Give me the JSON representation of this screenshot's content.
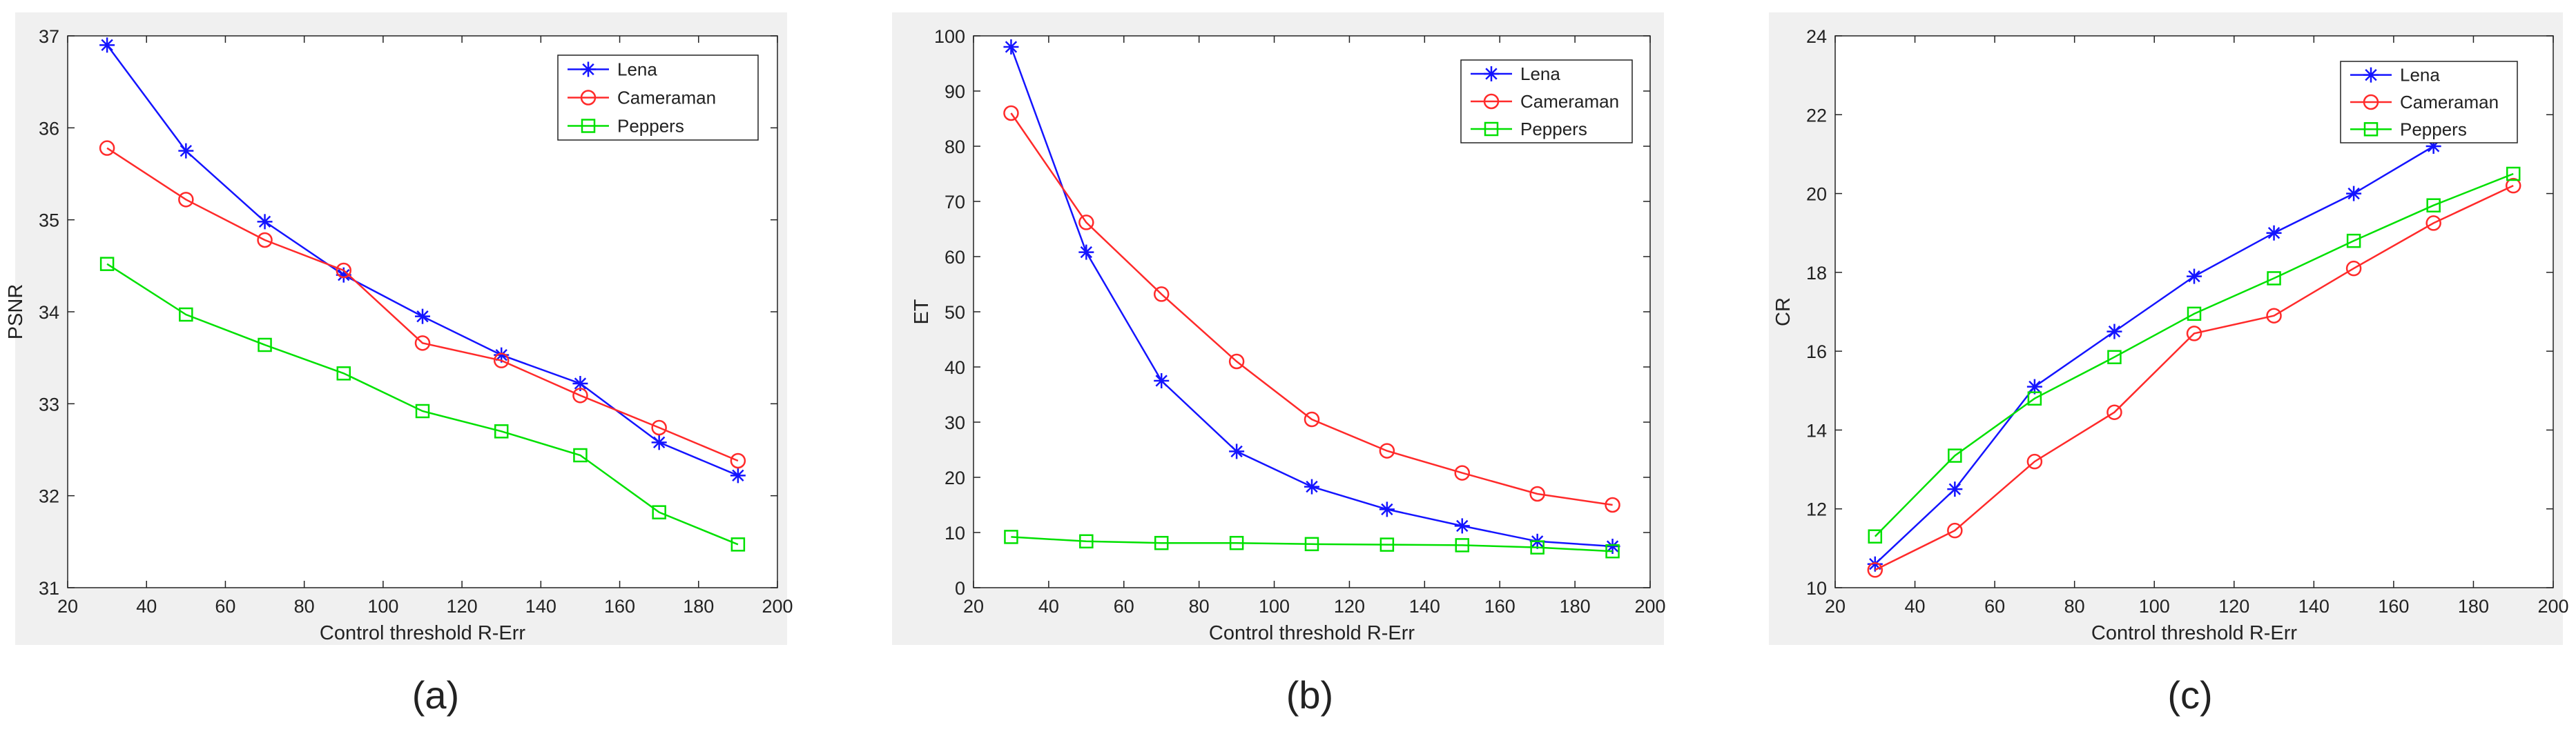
{
  "colors": {
    "lena": "#1414ff",
    "cameraman": "#ff2a2a",
    "peppers": "#00e000",
    "panel_bg": "#f0f0f0",
    "axes_bg": "#ffffff",
    "axis": "#222222"
  },
  "chart_data": [
    {
      "type": "line",
      "caption": "(a)",
      "xlabel": "Control threshold R-Err",
      "ylabel": "PSNR",
      "xlim": [
        20,
        200
      ],
      "ylim": [
        31,
        37
      ],
      "xticks": [
        20,
        40,
        60,
        80,
        100,
        120,
        140,
        160,
        180,
        200
      ],
      "yticks": [
        31,
        32,
        33,
        34,
        35,
        36,
        37
      ],
      "grid": false,
      "legend": "top-right",
      "x": [
        30,
        50,
        70,
        90,
        110,
        130,
        150,
        170,
        190
      ],
      "series": [
        {
          "name": "Lena",
          "marker": "star",
          "values": [
            36.9,
            35.75,
            34.98,
            34.4,
            33.95,
            33.53,
            33.22,
            32.58,
            32.22
          ]
        },
        {
          "name": "Cameraman",
          "marker": "circle",
          "values": [
            35.78,
            35.22,
            34.78,
            34.45,
            33.66,
            33.47,
            33.09,
            32.74,
            32.38
          ]
        },
        {
          "name": "Peppers",
          "marker": "square",
          "values": [
            34.52,
            33.97,
            33.64,
            33.33,
            32.92,
            32.7,
            32.44,
            31.82,
            31.47
          ]
        }
      ]
    },
    {
      "type": "line",
      "caption": "(b)",
      "xlabel": "Control threshold R-Err",
      "ylabel": "ET",
      "xlim": [
        20,
        200
      ],
      "ylim": [
        0,
        100
      ],
      "xticks": [
        20,
        40,
        60,
        80,
        100,
        120,
        140,
        160,
        180,
        200
      ],
      "yticks": [
        0,
        10,
        20,
        30,
        40,
        50,
        60,
        70,
        80,
        90,
        100
      ],
      "grid": false,
      "legend": "top-right",
      "x": [
        30,
        50,
        70,
        90,
        110,
        130,
        150,
        170,
        190
      ],
      "series": [
        {
          "name": "Lena",
          "marker": "star",
          "values": [
            98,
            60.8,
            37.5,
            24.7,
            18.3,
            14.2,
            11.2,
            8.4,
            7.5
          ]
        },
        {
          "name": "Cameraman",
          "marker": "circle",
          "values": [
            86,
            66.2,
            53.2,
            41,
            30.5,
            24.8,
            20.8,
            17,
            15
          ]
        },
        {
          "name": "Peppers",
          "marker": "square",
          "values": [
            9.2,
            8.4,
            8.1,
            8.1,
            7.9,
            7.8,
            7.7,
            7.3,
            6.6
          ]
        }
      ]
    },
    {
      "type": "line",
      "caption": "(c)",
      "xlabel": "Control threshold R-Err",
      "ylabel": "CR",
      "xlim": [
        20,
        200
      ],
      "ylim": [
        10,
        24
      ],
      "xticks": [
        20,
        40,
        60,
        80,
        100,
        120,
        140,
        160,
        180,
        200
      ],
      "yticks": [
        10,
        12,
        14,
        16,
        18,
        20,
        22,
        24
      ],
      "grid": false,
      "legend": "top-right",
      "x": [
        30,
        50,
        70,
        90,
        110,
        130,
        150,
        170,
        190
      ],
      "series": [
        {
          "name": "Lena",
          "marker": "star",
          "x": [
            30,
            50,
            70,
            90,
            110,
            130,
            150,
            170
          ],
          "values": [
            10.6,
            12.5,
            15.1,
            16.5,
            17.9,
            19,
            20,
            21.2
          ]
        },
        {
          "name": "Cameraman",
          "marker": "circle",
          "values": [
            10.45,
            11.45,
            13.2,
            14.45,
            16.45,
            16.9,
            18.1,
            19.25,
            20.2
          ]
        },
        {
          "name": "Peppers",
          "marker": "square",
          "values": [
            11.3,
            13.35,
            14.8,
            15.85,
            16.95,
            17.85,
            18.8,
            19.7,
            20.5
          ]
        }
      ]
    }
  ]
}
